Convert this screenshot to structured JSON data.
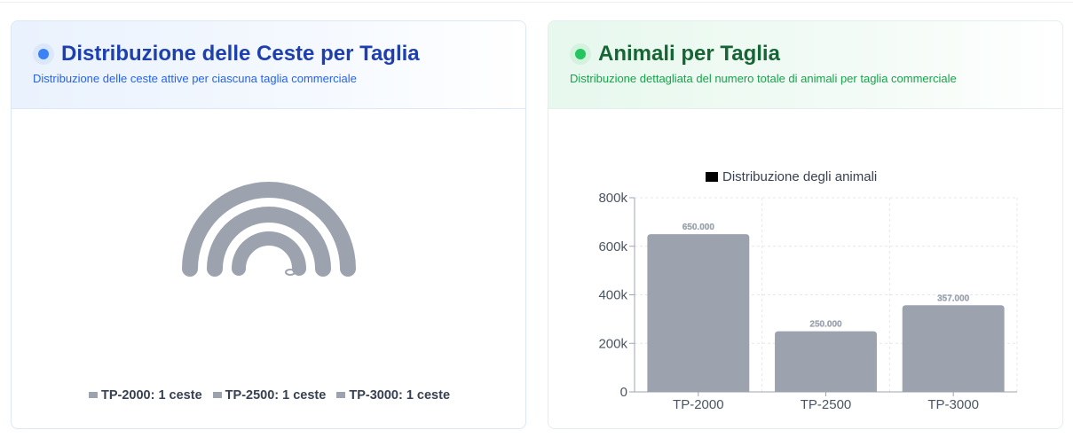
{
  "left_card": {
    "title": "Distribuzione delle Ceste per Taglia",
    "subtitle": "Distribuzione delle ceste attive per ciascuna taglia commerciale",
    "legend": [
      {
        "label": "TP-2000: 1 ceste"
      },
      {
        "label": "TP-2500: 1 ceste"
      },
      {
        "label": "TP-3000: 1 ceste"
      }
    ]
  },
  "right_card": {
    "title": "Animali per Taglia",
    "subtitle": "Distribuzione dettagliata del numero totale di animali per taglia commerciale"
  },
  "chart_data": [
    {
      "type": "radial-bar",
      "categories": [
        "TP-2000",
        "TP-2500",
        "TP-3000"
      ],
      "values": [
        1,
        1,
        1
      ],
      "unit": "ceste",
      "color": "#9ca3af"
    },
    {
      "type": "bar",
      "legend": "Distribuzione degli animali",
      "legend_position": "top-center",
      "categories": [
        "TP-2000",
        "TP-2500",
        "TP-3000"
      ],
      "values": [
        650000,
        250000,
        357000
      ],
      "data_labels": [
        "650.000",
        "250.000",
        "357.000"
      ],
      "y_ticks": [
        "0",
        "200k",
        "400k",
        "600k",
        "800k"
      ],
      "ylim": [
        0,
        800000
      ],
      "grid": true,
      "color": "#9ca3af"
    }
  ]
}
